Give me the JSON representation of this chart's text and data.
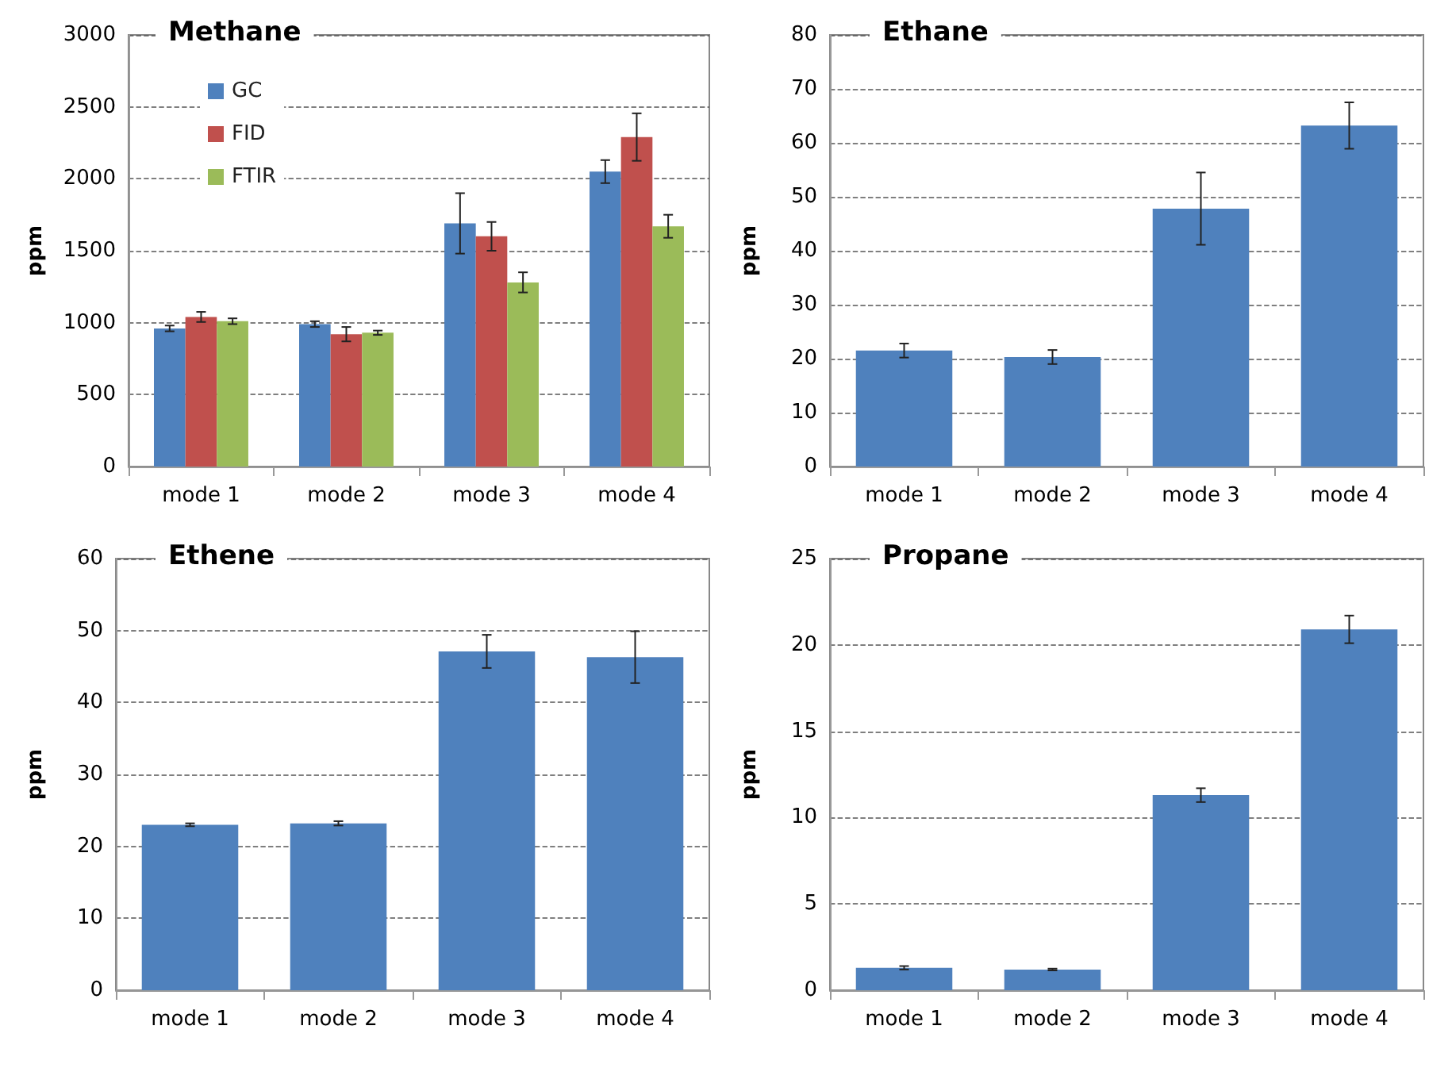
{
  "chart_data": [
    {
      "type": "bar",
      "title": "Methane",
      "ylabel": "ppm",
      "categories": [
        "mode 1",
        "mode 2",
        "mode 3",
        "mode 4"
      ],
      "ylim": [
        0,
        3000
      ],
      "yticks": [
        0,
        500,
        1000,
        1500,
        2000,
        2500,
        3000
      ],
      "grid": "y",
      "legend": "top left",
      "series": [
        {
          "name": "GC",
          "color": "#4f81bd",
          "values": [
            960,
            990,
            1690,
            2050
          ],
          "errors": [
            20,
            20,
            210,
            80
          ]
        },
        {
          "name": "FID",
          "color": "#c0504d",
          "values": [
            1040,
            920,
            1600,
            2290
          ],
          "errors": [
            35,
            50,
            100,
            165
          ]
        },
        {
          "name": "FTIR",
          "color": "#9bbb59",
          "values": [
            1010,
            930,
            1280,
            1670
          ],
          "errors": [
            20,
            15,
            70,
            80
          ]
        }
      ]
    },
    {
      "type": "bar",
      "title": "Ethane",
      "ylabel": "ppm",
      "categories": [
        "mode 1",
        "mode 2",
        "mode 3",
        "mode 4"
      ],
      "ylim": [
        0,
        80
      ],
      "yticks": [
        0,
        10,
        20,
        30,
        40,
        50,
        60,
        70,
        80
      ],
      "grid": "y",
      "series": [
        {
          "color": "#4f81bd",
          "values": [
            21.5,
            20.3,
            47.8,
            63.2
          ],
          "errors": [
            1.3,
            1.3,
            6.7,
            4.3
          ]
        }
      ]
    },
    {
      "type": "bar",
      "title": "Ethene",
      "ylabel": "ppm",
      "categories": [
        "mode 1",
        "mode 2",
        "mode 3",
        "mode 4"
      ],
      "ylim": [
        0,
        60
      ],
      "yticks": [
        0,
        10,
        20,
        30,
        40,
        50,
        60
      ],
      "grid": "y",
      "series": [
        {
          "color": "#4f81bd",
          "values": [
            23.0,
            23.2,
            47.1,
            46.3
          ],
          "errors": [
            0.2,
            0.3,
            2.3,
            3.6
          ]
        }
      ]
    },
    {
      "type": "bar",
      "title": "Propane",
      "ylabel": "ppm",
      "categories": [
        "mode 1",
        "mode 2",
        "mode 3",
        "mode 4"
      ],
      "ylim": [
        0,
        25
      ],
      "yticks": [
        0,
        5,
        10,
        15,
        20,
        25
      ],
      "grid": "y",
      "series": [
        {
          "color": "#4f81bd",
          "values": [
            1.3,
            1.2,
            11.3,
            20.9
          ],
          "errors": [
            0.1,
            0.05,
            0.4,
            0.8
          ]
        }
      ]
    }
  ]
}
